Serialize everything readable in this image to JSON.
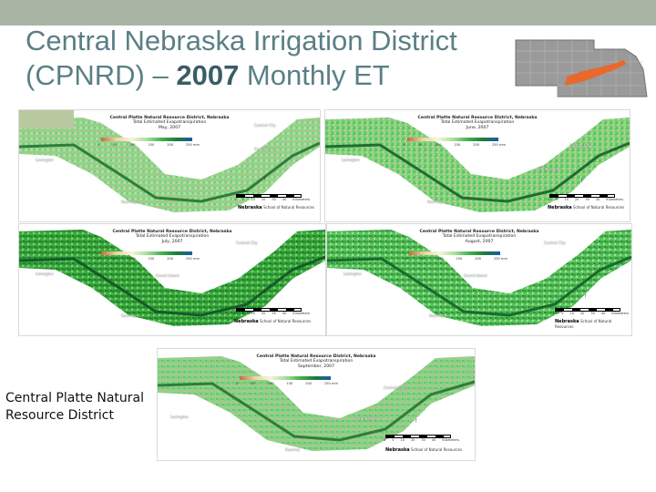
{
  "header": {
    "title_line1": "Central Nebraska Irrigation District",
    "title_line2_pre": "(CPNRD) – ",
    "title_year": "2007",
    "title_line2_post": " Monthly ET"
  },
  "caption": {
    "line1": "Central Platte Natural",
    "line2": "Resource District"
  },
  "colors": {
    "title": "#5a7f86",
    "topbar": "#a8b5a5",
    "district_highlight": "#e8692b",
    "et_high": "#1c7b3a",
    "et_mid": "#7fd36e",
    "et_low": "#e9d3a7"
  },
  "maps": [
    {
      "title": "Central Platte Natural Resource District, Nebraska",
      "subtitle": "Total Estimated Evapotranspiration",
      "month": "May, 2007",
      "legend": [
        "0",
        "50",
        "100",
        "150",
        "200",
        "250 mm"
      ],
      "scale": [
        "0",
        "5",
        "10",
        "20",
        "30",
        "40",
        "Kilometers"
      ],
      "logo": "Nebraska",
      "logo_sub": "School of Natural Resources",
      "cities": [
        "Central City",
        "Grand Island",
        "Kearney",
        "Lexington"
      ]
    },
    {
      "title": "Central Platte Natural Resource District, Nebraska",
      "subtitle": "Total Estimated Evapotranspiration",
      "month": "June, 2007",
      "legend": [
        "0",
        "50",
        "100",
        "150",
        "200",
        "250 mm"
      ],
      "scale": [
        "0",
        "5",
        "10",
        "20",
        "30",
        "40",
        "Kilometers"
      ],
      "logo": "Nebraska",
      "logo_sub": "School of Natural Resources",
      "cities": [
        "Central City",
        "Grand Island",
        "Kearney",
        "Lexington"
      ]
    },
    {
      "title": "Central Platte Natural Resource District, Nebraska",
      "subtitle": "Total Estimated Evapotranspiration",
      "month": "July, 2007",
      "legend": [
        "0",
        "50",
        "100",
        "150",
        "200",
        "250 mm"
      ],
      "scale": [
        "0",
        "5",
        "10",
        "20",
        "30",
        "40",
        "Kilometers"
      ],
      "logo": "Nebraska",
      "logo_sub": "School of Natural Resources",
      "cities": [
        "Central City",
        "Grand Island",
        "Kearney",
        "Lexington"
      ]
    },
    {
      "title": "Central Platte Natural Resource District, Nebraska",
      "subtitle": "Total Estimated Evapotranspiration",
      "month": "August, 2007",
      "legend": [
        "0",
        "50",
        "100",
        "150",
        "200",
        "250 mm"
      ],
      "scale": [
        "0",
        "5",
        "10",
        "20",
        "30",
        "40",
        "Kilometers"
      ],
      "logo": "Nebraska",
      "logo_sub": "School of Natural Resources",
      "cities": [
        "Central City",
        "Grand Island",
        "Kearney",
        "Lexington"
      ]
    },
    {
      "title": "Central Platte Natural Resource District, Nebraska",
      "subtitle": "Total Estimated Evapotranspiration",
      "month": "September, 2007",
      "legend": [
        "0",
        "50",
        "100",
        "150",
        "200",
        "250 mm"
      ],
      "scale": [
        "0",
        "5",
        "10",
        "20",
        "30",
        "40",
        "Kilometers"
      ],
      "logo": "Nebraska",
      "logo_sub": "School of Natural Resources",
      "cities": [
        "Central City",
        "Grand Island",
        "Kearney",
        "Lexington"
      ]
    }
  ]
}
